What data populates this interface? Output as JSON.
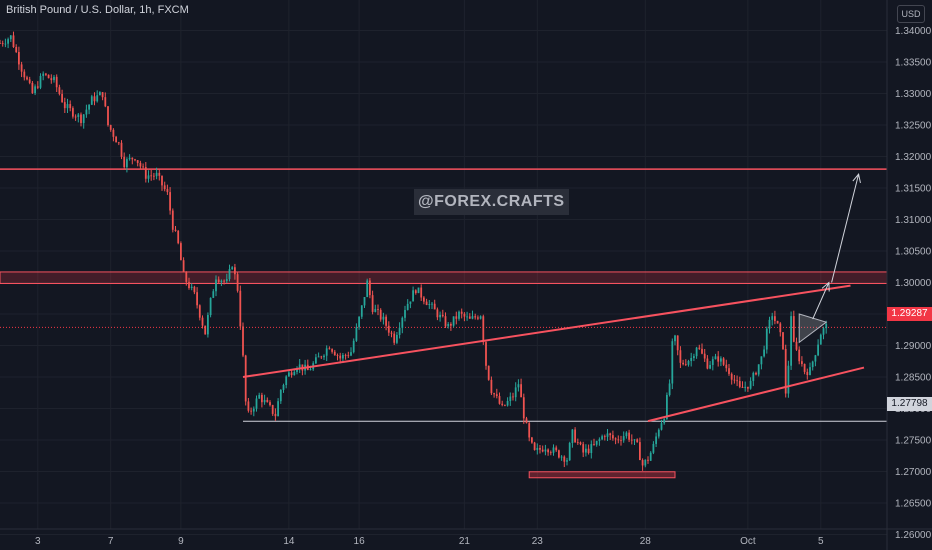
{
  "chart_data": {
    "type": "candlestick",
    "title": "British Pound / U.S. Dollar, 1h, FXCM",
    "currency": "USD",
    "watermark": "@FOREX.CRAFTS",
    "x_ticks": [
      "3",
      "7",
      "9",
      "14",
      "16",
      "21",
      "23",
      "28",
      "Oct",
      "5"
    ],
    "y_ticks": [
      "1.34000",
      "1.33500",
      "1.33000",
      "1.32500",
      "1.32000",
      "1.31500",
      "1.31000",
      "1.30500",
      "1.30000",
      "1.29500",
      "1.29000",
      "1.28500",
      "1.28000",
      "1.27500",
      "1.27000",
      "1.26500",
      "1.26000"
    ],
    "ylim": [
      1.2575,
      1.3425
    ],
    "last_price": "1.29287",
    "horizontal_line_price": "1.27798",
    "price_path": [
      [
        0,
        1.338
      ],
      [
        4,
        1.339
      ],
      [
        8,
        1.334
      ],
      [
        12,
        1.33
      ],
      [
        16,
        1.333
      ],
      [
        20,
        1.332
      ],
      [
        24,
        1.328
      ],
      [
        30,
        1.326
      ],
      [
        34,
        1.329
      ],
      [
        38,
        1.33
      ],
      [
        40,
        1.325
      ],
      [
        44,
        1.322
      ],
      [
        46,
        1.319
      ],
      [
        50,
        1.32
      ],
      [
        54,
        1.317
      ],
      [
        58,
        1.317
      ],
      [
        62,
        1.314
      ],
      [
        64,
        1.309
      ],
      [
        66,
        1.306
      ],
      [
        68,
        1.301
      ],
      [
        72,
        1.298
      ],
      [
        74,
        1.295
      ],
      [
        76,
        1.292
      ],
      [
        78,
        1.297
      ],
      [
        80,
        1.301
      ],
      [
        84,
        1.3
      ],
      [
        86,
        1.303
      ],
      [
        88,
        1.299
      ],
      [
        90,
        1.288
      ],
      [
        91,
        1.281
      ],
      [
        92,
        1.279
      ],
      [
        96,
        1.282
      ],
      [
        100,
        1.28
      ],
      [
        102,
        1.279
      ],
      [
        104,
        1.283
      ],
      [
        106,
        1.285
      ],
      [
        110,
        1.287
      ],
      [
        114,
        1.286
      ],
      [
        118,
        1.288
      ],
      [
        122,
        1.29
      ],
      [
        126,
        1.288
      ],
      [
        130,
        1.289
      ],
      [
        134,
        1.296
      ],
      [
        136,
        1.3
      ],
      [
        138,
        1.296
      ],
      [
        142,
        1.294
      ],
      [
        146,
        1.291
      ],
      [
        150,
        1.296
      ],
      [
        154,
        1.299
      ],
      [
        158,
        1.297
      ],
      [
        162,
        1.295
      ],
      [
        166,
        1.293
      ],
      [
        170,
        1.295
      ],
      [
        174,
        1.294
      ],
      [
        178,
        1.295
      ],
      [
        180,
        1.287
      ],
      [
        182,
        1.283
      ],
      [
        186,
        1.28
      ],
      [
        190,
        1.282
      ],
      [
        192,
        1.284
      ],
      [
        194,
        1.279
      ],
      [
        196,
        1.275
      ],
      [
        198,
        1.273
      ],
      [
        202,
        1.274
      ],
      [
        206,
        1.273
      ],
      [
        210,
        1.272
      ],
      [
        212,
        1.276
      ],
      [
        216,
        1.273
      ],
      [
        220,
        1.274
      ],
      [
        224,
        1.276
      ],
      [
        228,
        1.275
      ],
      [
        232,
        1.276
      ],
      [
        236,
        1.274
      ],
      [
        238,
        1.271
      ],
      [
        240,
        1.272
      ],
      [
        242,
        1.274
      ],
      [
        244,
        1.277
      ],
      [
        246,
        1.279
      ],
      [
        248,
        1.284
      ],
      [
        249,
        1.29
      ],
      [
        250,
        1.291
      ],
      [
        252,
        1.287
      ],
      [
        256,
        1.288
      ],
      [
        258,
        1.29
      ],
      [
        262,
        1.287
      ],
      [
        266,
        1.288
      ],
      [
        270,
        1.286
      ],
      [
        274,
        1.283
      ],
      [
        278,
        1.284
      ],
      [
        282,
        1.288
      ],
      [
        284,
        1.292
      ],
      [
        286,
        1.295
      ],
      [
        288,
        1.293
      ],
      [
        290,
        1.29
      ],
      [
        291,
        1.282
      ],
      [
        292,
        1.287
      ],
      [
        293,
        1.295
      ],
      [
        294,
        1.29
      ],
      [
        296,
        1.288
      ],
      [
        298,
        1.286
      ],
      [
        300,
        1.286
      ],
      [
        302,
        1.289
      ],
      [
        304,
        1.292
      ],
      [
        306,
        1.293
      ]
    ],
    "annotations": {
      "resistance_line": 1.318,
      "resistance_zone": [
        1.3,
        1.3012
      ],
      "support_line": 1.27798,
      "channel_upper": [
        [
          90,
          1.285
        ],
        [
          315,
          1.2995
        ]
      ],
      "channel_lower": [
        [
          240,
          1.278
        ],
        [
          320,
          1.2865
        ]
      ],
      "bottom_zone": [
        [
          196,
          1.269
        ],
        [
          250,
          1.2698
        ]
      ],
      "arrow_to_zone": [
        [
          301,
          1.2942
        ],
        [
          307,
          1.3
        ]
      ],
      "arrow_to_target": [
        [
          308,
          1.3
        ],
        [
          318,
          1.3172
        ]
      ]
    }
  }
}
